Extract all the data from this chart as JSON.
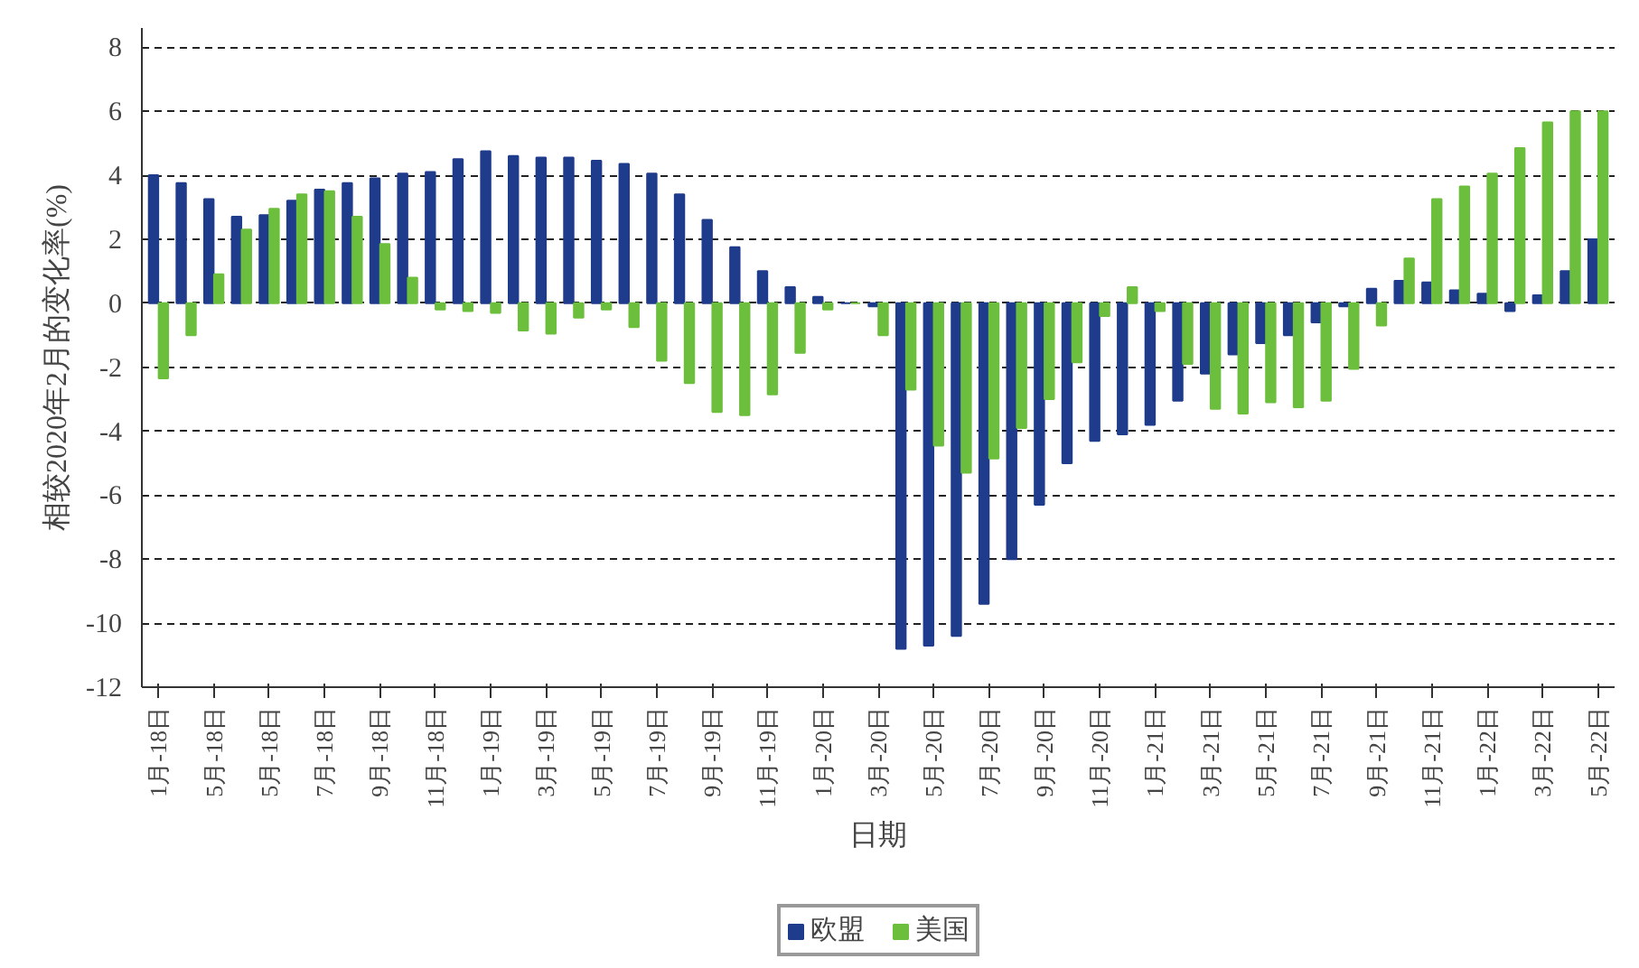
{
  "chart_data": {
    "type": "bar",
    "xlabel": "日期",
    "ylabel": "相较2020年2月的变化率(%)",
    "categories": [
      "1月-18日",
      null,
      "5月-18日",
      null,
      "5月-18日",
      null,
      "7月-18日",
      null,
      "9月-18日",
      null,
      "11月-18日",
      null,
      "1月-19日",
      null,
      "3月-19日",
      null,
      "5月-19日",
      null,
      "7月-19日",
      null,
      "9月-19日",
      null,
      "11月-19日",
      null,
      "1月-20日",
      null,
      "3月-20日",
      null,
      "5月-20日",
      null,
      "7月-20日",
      null,
      "9月-20日",
      null,
      "11月-20日",
      null,
      "1月-21日",
      null,
      "3月-21日",
      null,
      "5月-21日",
      null,
      "7月-21日",
      null,
      "9月-21日",
      null,
      "11月-21日",
      null,
      "1月-22日",
      null,
      "3月-22日",
      null,
      "5月-22日"
    ],
    "series": [
      {
        "name": "欧盟",
        "color": "#1f3b8c",
        "values": [
          4.0,
          3.75,
          3.25,
          2.7,
          2.75,
          3.2,
          3.55,
          3.75,
          3.9,
          4.05,
          4.1,
          4.5,
          4.75,
          4.6,
          4.55,
          4.55,
          4.45,
          4.35,
          4.05,
          3.4,
          2.6,
          1.75,
          1.0,
          0.5,
          0.2,
          0,
          -0.1,
          -10.8,
          -10.7,
          -10.4,
          -9.4,
          -8.0,
          -6.3,
          -5.0,
          -4.3,
          -4.1,
          -3.8,
          -3.05,
          -2.2,
          -1.6,
          -1.25,
          -1.0,
          -0.6,
          -0.1,
          0.45,
          0.7,
          0.65,
          0.4,
          0.3,
          -0.25,
          0.25,
          1.0,
          2.0
        ]
      },
      {
        "name": "美国",
        "color": "#6cbf3c",
        "values": [
          -2.35,
          -1.0,
          0.9,
          2.3,
          2.95,
          3.4,
          3.5,
          2.7,
          1.85,
          0.8,
          -0.2,
          -0.25,
          -0.3,
          -0.85,
          -0.95,
          -0.45,
          -0.2,
          -0.75,
          -1.8,
          -2.5,
          -3.4,
          -3.5,
          -2.85,
          -1.55,
          -0.2,
          0,
          -1.0,
          -2.7,
          -4.45,
          -5.3,
          -4.85,
          -3.9,
          -3.0,
          -1.85,
          -0.4,
          0.5,
          -0.25,
          -1.9,
          -3.3,
          -3.45,
          -3.1,
          -3.25,
          -3.05,
          -2.05,
          -0.7,
          1.4,
          3.25,
          3.65,
          4.05,
          4.85,
          5.65,
          6.0,
          6.0
        ]
      }
    ],
    "ylim": [
      -12,
      8.6
    ],
    "yticks": [
      -12,
      -10,
      -8,
      -6,
      -4,
      -2,
      0,
      2,
      4,
      6,
      8
    ],
    "grid": "y",
    "legend": "bottom"
  }
}
